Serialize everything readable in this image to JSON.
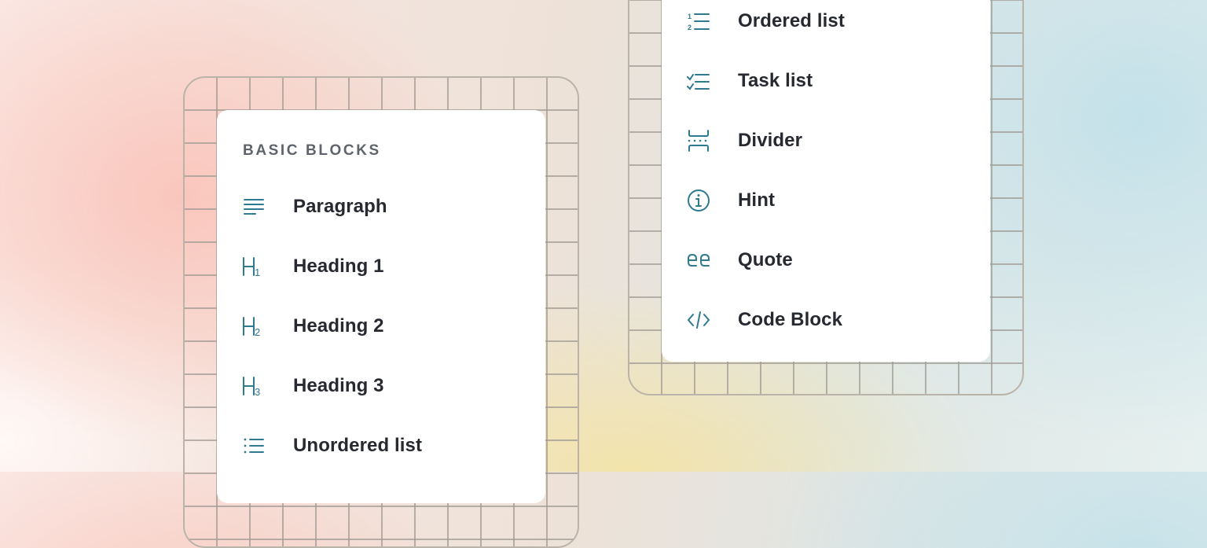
{
  "theme": {
    "icon_color": "#2f7a90",
    "text_color": "#262930",
    "section_color": "#5f636b"
  },
  "left_menu": {
    "section_title": "BASIC BLOCKS",
    "items": [
      {
        "label": "Paragraph",
        "icon": "paragraph-icon"
      },
      {
        "label": "Heading 1",
        "icon": "heading-1-icon"
      },
      {
        "label": "Heading 2",
        "icon": "heading-2-icon"
      },
      {
        "label": "Heading 3",
        "icon": "heading-3-icon"
      },
      {
        "label": "Unordered list",
        "icon": "unordered-list-icon"
      }
    ]
  },
  "right_menu": {
    "items": [
      {
        "label": "Ordered list",
        "icon": "ordered-list-icon"
      },
      {
        "label": "Task list",
        "icon": "task-list-icon"
      },
      {
        "label": "Divider",
        "icon": "divider-icon"
      },
      {
        "label": "Hint",
        "icon": "info-icon"
      },
      {
        "label": "Quote",
        "icon": "quote-icon"
      },
      {
        "label": "Code Block",
        "icon": "code-icon"
      }
    ]
  }
}
